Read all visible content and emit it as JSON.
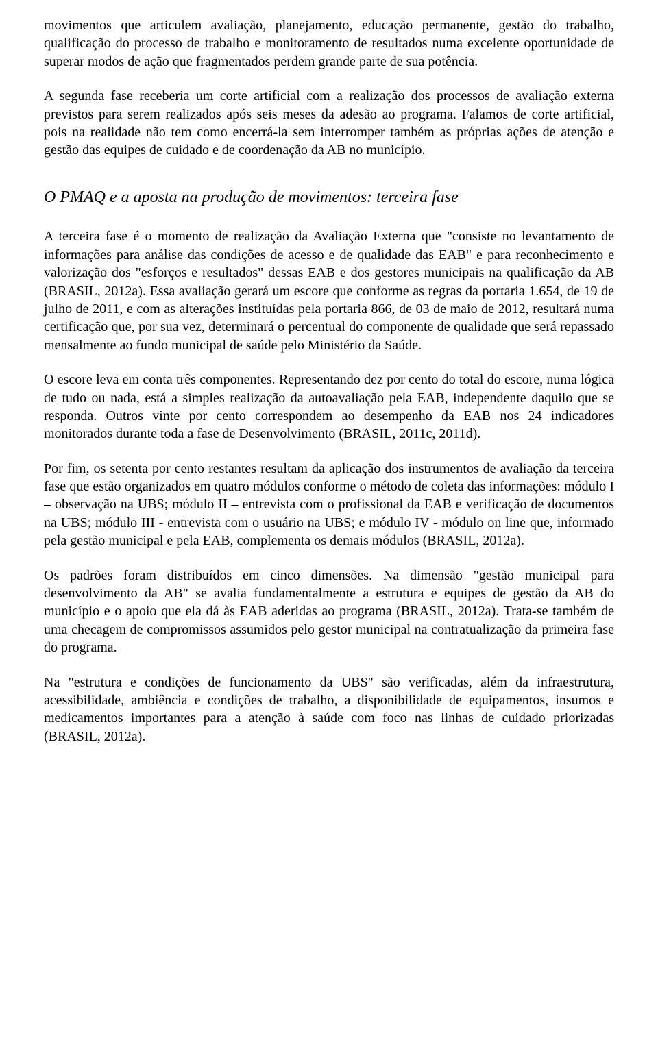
{
  "paragraphs": {
    "p1": "movimentos que articulem avaliação, planejamento, educação permanente, gestão do trabalho, qualificação do processo de trabalho e monitoramento de resultados numa excelente oportunidade de superar modos de ação que fragmentados perdem grande parte de sua potência.",
    "p2": "A segunda fase receberia um corte artificial com a realização dos processos de avaliação externa previstos para serem realizados após seis meses da adesão ao programa. Falamos de corte artificial, pois na realidade não tem como encerrá-la sem interromper também as próprias ações de atenção e gestão das equipes de cuidado e de coordenação da AB no município.",
    "h1": "O PMAQ e a aposta na produção de movimentos: terceira fase",
    "p3": "A terceira fase é o momento de realização da Avaliação Externa que \"consiste no levantamento de informações para análise das condições de acesso e de qualidade das EAB\" e para reconhecimento e valorização dos \"esforços e resultados\" dessas EAB e dos gestores municipais na qualificação da AB (BRASIL, 2012a). Essa avaliação gerará um escore que conforme as regras da portaria 1.654, de 19 de julho de 2011, e com as alterações instituídas pela portaria 866, de 03 de maio de 2012, resultará numa certificação que, por sua vez, determinará o percentual do componente de qualidade que será repassado mensalmente ao fundo municipal de saúde pelo Ministério da Saúde.",
    "p4": "O escore leva em conta três componentes. Representando dez por cento do total do escore, numa lógica de tudo ou nada, está a simples realização da autoavaliação pela EAB, independente daquilo que se responda. Outros vinte por cento correspondem ao desempenho da EAB nos 24 indicadores monitorados durante toda a fase de Desenvolvimento (BRASIL, 2011c, 2011d).",
    "p5": "Por fim, os setenta por cento restantes resultam da aplicação dos instrumentos de avaliação da terceira fase que estão organizados em quatro módulos conforme o método de coleta das informações: módulo I – observação na UBS; módulo II – entrevista com o profissional da EAB e verificação de documentos na UBS; módulo III - entrevista com o usuário na UBS; e módulo IV - módulo on line que, informado pela gestão municipal e pela EAB,  complementa os demais módulos (BRASIL, 2012a).",
    "p6": "Os padrões foram distribuídos em cinco dimensões. Na dimensão \"gestão municipal para desenvolvimento da AB\" se avalia fundamentalmente a estrutura e equipes de gestão da AB do município e o apoio que ela dá às EAB aderidas ao programa (BRASIL, 2012a). Trata-se também de uma checagem de compromissos assumidos pelo gestor municipal na contratualização da primeira fase do programa.",
    "p7": "Na \"estrutura e condições de funcionamento da UBS\" são verificadas, além da infraestrutura, acessibilidade, ambiência e condições de trabalho, a disponibilidade de equipamentos, insumos e medicamentos importantes para a atenção à saúde com foco nas linhas de cuidado priorizadas (BRASIL, 2012a)."
  }
}
